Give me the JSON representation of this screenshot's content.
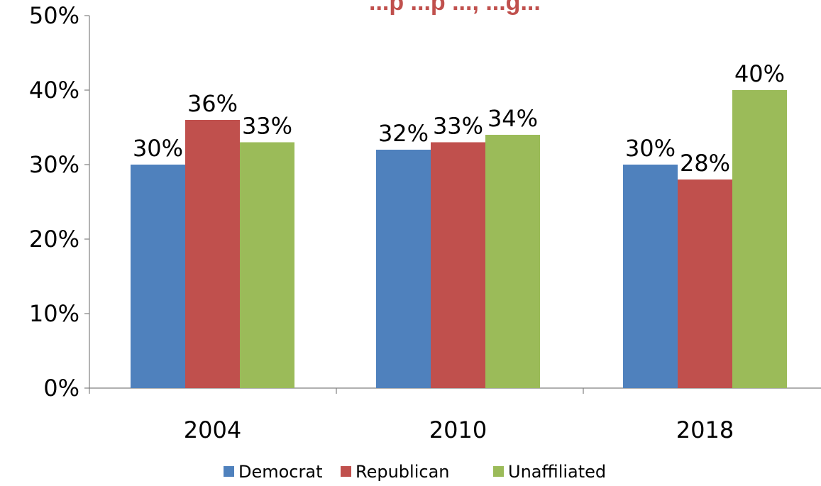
{
  "chart_data": {
    "type": "bar",
    "title": "...p   ...p   ..., ...g...",
    "categories": [
      "2004",
      "2010",
      "2018"
    ],
    "series": [
      {
        "name": "Democrat",
        "color": "#4f81bd",
        "values": [
          30,
          32,
          30
        ]
      },
      {
        "name": "Republican",
        "color": "#c0504d",
        "values": [
          36,
          33,
          28
        ]
      },
      {
        "name": "Unaffiliated",
        "color": "#9bbb59",
        "values": [
          33,
          34,
          40
        ]
      }
    ],
    "data_labels": [
      [
        "30%",
        "32%",
        "30%"
      ],
      [
        "36%",
        "33%",
        "28%"
      ],
      [
        "33%",
        "34%",
        "40%"
      ]
    ],
    "y_ticks": [
      "0%",
      "10%",
      "20%",
      "30%",
      "40%",
      "50%"
    ],
    "ylim": [
      0,
      50
    ],
    "y_unit": "%",
    "xlabel": "",
    "ylabel": "",
    "grid": false,
    "legend_position": "bottom",
    "title_color": "#c0504d"
  }
}
